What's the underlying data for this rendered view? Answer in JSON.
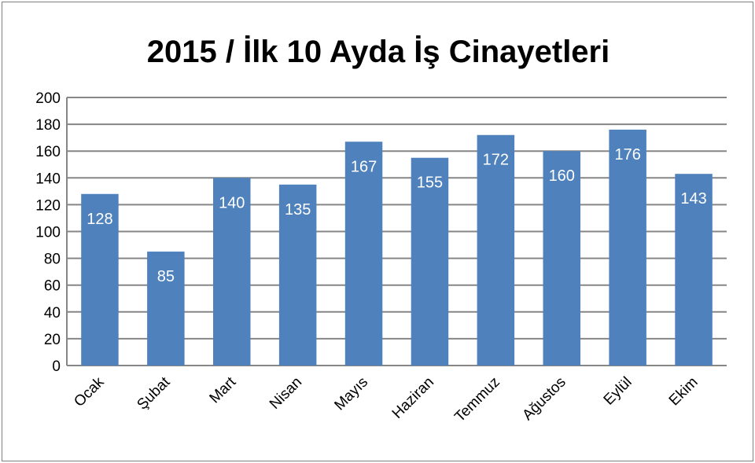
{
  "chart_data": {
    "type": "bar",
    "title": "2015 / İlk 10 Ayda İş Cinayetleri",
    "categories": [
      "Ocak",
      "Şubat",
      "Mart",
      "Nisan",
      "Mayıs",
      "Haziran",
      "Temmuz",
      "Ağustos",
      "Eylül",
      "Ekim"
    ],
    "values": [
      128,
      85,
      140,
      135,
      167,
      155,
      172,
      160,
      176,
      143
    ],
    "ylim": [
      0,
      200
    ],
    "yticks": [
      0,
      20,
      40,
      60,
      80,
      100,
      120,
      140,
      160,
      180,
      200
    ],
    "grid": true,
    "legend": "none",
    "bar_color": "#4f81bd",
    "gridline_color": "#868686",
    "value_label_color": "#ffffff"
  }
}
